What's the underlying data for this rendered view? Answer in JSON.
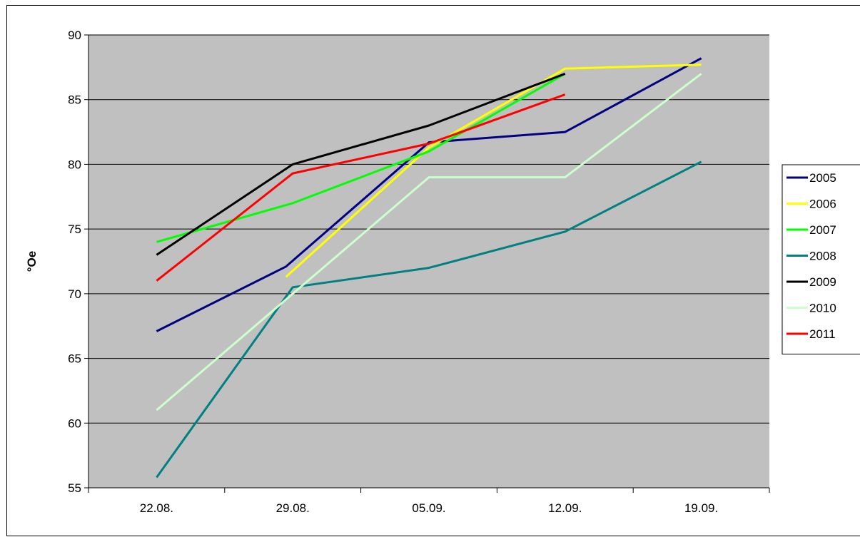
{
  "chart_data": {
    "type": "line",
    "title": "",
    "xlabel": "",
    "ylabel": "°Oe",
    "categories": [
      "22.08.",
      "29.08.",
      "05.09.",
      "12.09.",
      "19.09."
    ],
    "ylim": [
      55,
      90
    ],
    "yticks": [
      55,
      60,
      65,
      70,
      75,
      80,
      85,
      90
    ],
    "grid": "horizontal",
    "plot_background": "#c0c0c0",
    "legend_position": "right",
    "series": [
      {
        "name": "2005",
        "color": "#000080",
        "points": [
          [
            0.0,
            67.1
          ],
          [
            0.95,
            72.1
          ],
          [
            2.0,
            81.7
          ],
          [
            3.0,
            82.5
          ],
          [
            4.0,
            88.2
          ]
        ]
      },
      {
        "name": "2006",
        "color": "#ffff00",
        "points": [
          [
            0.95,
            71.3
          ],
          [
            2.0,
            81.3
          ],
          [
            3.0,
            87.4
          ],
          [
            4.0,
            87.7
          ]
        ]
      },
      {
        "name": "2007",
        "color": "#00ff00",
        "points": [
          [
            0.0,
            74.0
          ],
          [
            1.0,
            77.0
          ],
          [
            2.0,
            81.0
          ],
          [
            3.0,
            87.0
          ]
        ]
      },
      {
        "name": "2008",
        "color": "#008080",
        "points": [
          [
            0.0,
            55.8
          ],
          [
            1.0,
            70.5
          ],
          [
            2.0,
            72.0
          ],
          [
            3.0,
            74.8
          ],
          [
            4.0,
            80.2
          ]
        ]
      },
      {
        "name": "2009",
        "color": "#000000",
        "points": [
          [
            0.0,
            73.0
          ],
          [
            1.0,
            80.0
          ],
          [
            2.0,
            83.0
          ],
          [
            3.0,
            87.0
          ]
        ]
      },
      {
        "name": "2010",
        "color": "#ccffcc",
        "points": [
          [
            0.0,
            61.0
          ],
          [
            1.0,
            70.0
          ],
          [
            2.0,
            79.0
          ],
          [
            3.0,
            79.0
          ],
          [
            4.0,
            87.0
          ]
        ]
      },
      {
        "name": "2011",
        "color": "#ff0000",
        "points": [
          [
            0.0,
            71.0
          ],
          [
            1.0,
            79.3
          ],
          [
            2.0,
            81.6
          ],
          [
            3.0,
            85.4
          ]
        ]
      }
    ]
  }
}
